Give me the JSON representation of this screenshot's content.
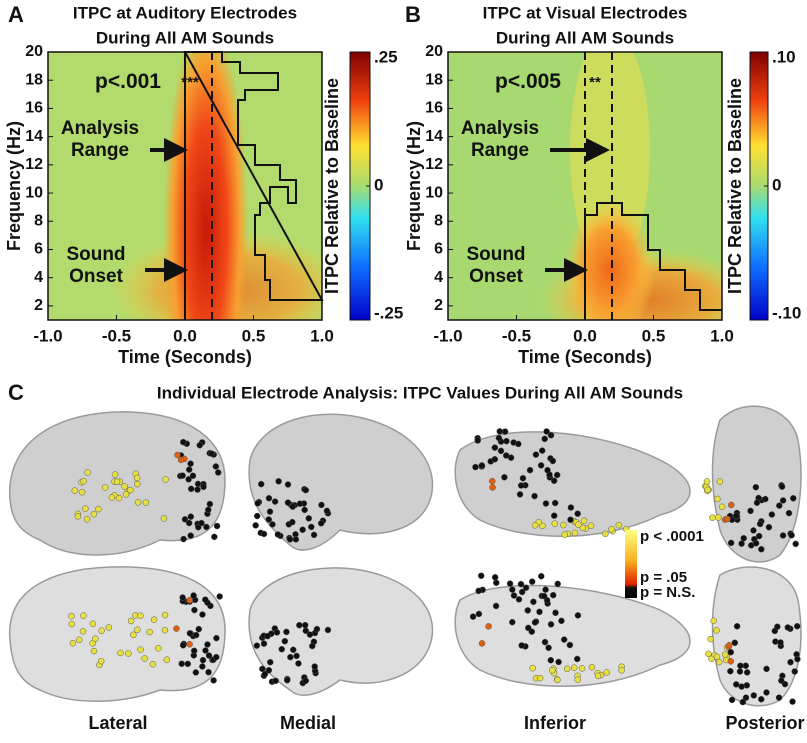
{
  "chart_data": [
    {
      "type": "heatmap",
      "panel": "A",
      "title": "ITPC at Auditory Electrodes",
      "subtitle": "During All AM Sounds",
      "xlabel": "Time (Seconds)",
      "ylabel": "Frequency (Hz)",
      "xlim": [
        -1,
        1
      ],
      "ylim": [
        1,
        20
      ],
      "xticks": [
        {
          "value": -1,
          "label": "-1.0"
        },
        {
          "value": -0.5,
          "label": "-0.5"
        },
        {
          "value": 0,
          "label": "0.0"
        },
        {
          "value": 0.5,
          "label": "0.5"
        },
        {
          "value": 1,
          "label": "1.0"
        }
      ],
      "yticks": [
        2,
        4,
        6,
        8,
        10,
        12,
        14,
        16,
        18,
        20
      ],
      "colorbar": {
        "label": "ITPC Relative to Baseline",
        "lim": [
          -0.25,
          0.25
        ],
        "ticks": [
          {
            "value": 0.25,
            "label": ".25"
          },
          0,
          {
            "value": -0.25,
            "label": "-.25"
          }
        ]
      },
      "annotations": [
        "p<.001",
        "***",
        "Analysis Range",
        "Sound Onset"
      ]
    },
    {
      "type": "heatmap",
      "panel": "B",
      "title": "ITPC at Visual Electrodes",
      "subtitle": "During All AM Sounds",
      "xlabel": "Time (Seconds)",
      "ylabel": "Frequency (Hz)",
      "xlim": [
        -1,
        1
      ],
      "ylim": [
        1,
        20
      ],
      "xticks": [
        {
          "value": -1,
          "label": "-1.0"
        },
        {
          "value": -0.5,
          "label": "-0.5"
        },
        {
          "value": 0,
          "label": "0.0"
        },
        {
          "value": 0.5,
          "label": "0.5"
        },
        {
          "value": 1,
          "label": "1.0"
        }
      ],
      "yticks": [
        2,
        4,
        6,
        8,
        10,
        12,
        14,
        16,
        18,
        20
      ],
      "colorbar": {
        "label": "ITPC Relative to Baseline",
        "lim": [
          -0.1,
          0.1
        ],
        "ticks": [
          {
            "value": 0.1,
            "label": ".10"
          },
          0,
          {
            "value": -0.1,
            "label": "-.10"
          }
        ]
      },
      "annotations": [
        "p<.005",
        "**",
        "Analysis Range",
        "Sound Onset"
      ]
    }
  ],
  "panel_c": {
    "label": "C",
    "title": "Individual Electrode Analysis: ITPC Values During All AM Sounds",
    "views": [
      "Lateral",
      "Medial",
      "Inferior",
      "Posterior"
    ],
    "legend": [
      "p < .0001",
      "p = .05",
      "p = N.S."
    ]
  }
}
